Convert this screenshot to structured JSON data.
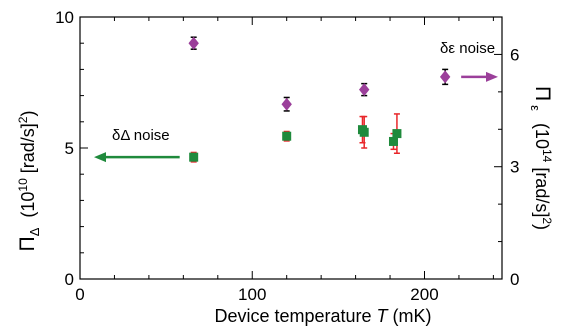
{
  "chart_data": {
    "type": "scatter",
    "xlabel_text": "Device temperature ",
    "xlabel_symbol": "T",
    "xlabel_unit": "  (mK)",
    "xlim": [
      0,
      245
    ],
    "xticks": [
      0,
      100,
      200
    ],
    "ylabel_left": {
      "symbol": "Π",
      "subscript": "Δ",
      "unit": "(10",
      "exp": "10",
      "unit_rest": " [rad/s]",
      "exp2": "2",
      "close": ")"
    },
    "ylim_left": [
      0,
      10
    ],
    "yticks_left": [
      0,
      5,
      10
    ],
    "ylabel_right": {
      "symbol": "Π",
      "subscript": "ε",
      "unit": "(10",
      "exp": "14",
      "unit_rest": " [rad/s]",
      "exp2": "2",
      "close": ")"
    },
    "ylim_right": [
      0,
      7
    ],
    "yticks_right": [
      0,
      3,
      6
    ],
    "series": [
      {
        "name": "δε noise",
        "axis": "right",
        "marker": "diamond",
        "color": "#9b3f9a",
        "error_color": "#000000",
        "points": [
          {
            "x": 66,
            "y": 6.3,
            "err": 0.16
          },
          {
            "x": 120,
            "y": 4.67,
            "err": 0.18
          },
          {
            "x": 165,
            "y": 5.06,
            "err": 0.16
          },
          {
            "x": 212,
            "y": 5.4,
            "err": 0.2
          }
        ]
      },
      {
        "name": "δΔ noise",
        "axis": "left",
        "marker": "square",
        "color": "#1f8a3c",
        "error_color": "#e8262a",
        "points": [
          {
            "x": 66,
            "y": 4.65,
            "err": 0.18
          },
          {
            "x": 120,
            "y": 5.45,
            "err": 0.18
          },
          {
            "x": 164,
            "y": 5.7,
            "err": 0.5
          },
          {
            "x": 165,
            "y": 5.6,
            "err": 0.6
          },
          {
            "x": 182,
            "y": 5.25,
            "err": 0.3
          },
          {
            "x": 184,
            "y": 5.55,
            "err": 0.75
          }
        ]
      }
    ],
    "annotations": [
      {
        "text": "δε noise",
        "series": 0,
        "arrow_direction": "right",
        "color": "#9b3f9a"
      },
      {
        "text": "δΔ noise",
        "series": 1,
        "arrow_direction": "left",
        "color": "#1f8a3c"
      }
    ]
  }
}
